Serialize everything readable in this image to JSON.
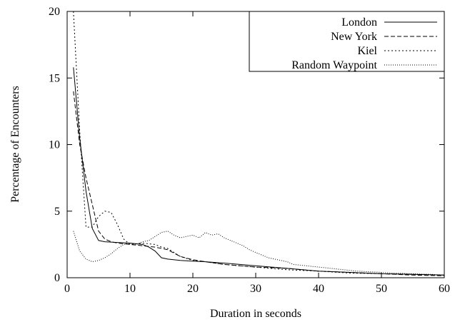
{
  "chart_data": {
    "type": "line",
    "title": "",
    "xlabel": "Duration in seconds",
    "ylabel": "Percentage of Encounters",
    "xlim": [
      0,
      60
    ],
    "ylim": [
      0,
      20
    ],
    "xticks": [
      0,
      10,
      20,
      30,
      40,
      50,
      60
    ],
    "yticks": [
      0,
      5,
      10,
      15,
      20
    ],
    "xtick_labels": [
      "0",
      "10",
      "20",
      "30",
      "40",
      "50",
      "60"
    ],
    "ytick_labels": [
      "0",
      "5",
      "10",
      "15",
      "20"
    ],
    "grid": false,
    "legend_position": "top-right",
    "series": [
      {
        "name": "London",
        "dash": "none",
        "points": [
          [
            1,
            15.8
          ],
          [
            2,
            10.5
          ],
          [
            3,
            6.5
          ],
          [
            4,
            3.7
          ],
          [
            5,
            2.8
          ],
          [
            6,
            2.7
          ],
          [
            8,
            2.65
          ],
          [
            10,
            2.6
          ],
          [
            12,
            2.5
          ],
          [
            13,
            2.3
          ],
          [
            14,
            2.0
          ],
          [
            15,
            1.5
          ],
          [
            16,
            1.4
          ],
          [
            18,
            1.3
          ],
          [
            20,
            1.25
          ],
          [
            22,
            1.2
          ],
          [
            25,
            1.1
          ],
          [
            30,
            0.9
          ],
          [
            35,
            0.7
          ],
          [
            40,
            0.5
          ],
          [
            45,
            0.4
          ],
          [
            50,
            0.3
          ],
          [
            55,
            0.25
          ],
          [
            60,
            0.2
          ]
        ]
      },
      {
        "name": "New York",
        "dash": "6,3",
        "points": [
          [
            1,
            14.0
          ],
          [
            2,
            10.0
          ],
          [
            3,
            7.5
          ],
          [
            4,
            5.5
          ],
          [
            5,
            3.5
          ],
          [
            6,
            2.9
          ],
          [
            7,
            2.7
          ],
          [
            8,
            2.6
          ],
          [
            10,
            2.5
          ],
          [
            12,
            2.4
          ],
          [
            14,
            2.3
          ],
          [
            16,
            2.1
          ],
          [
            18,
            1.6
          ],
          [
            20,
            1.35
          ],
          [
            22,
            1.2
          ],
          [
            25,
            1.0
          ],
          [
            30,
            0.8
          ],
          [
            35,
            0.7
          ],
          [
            40,
            0.5
          ],
          [
            45,
            0.4
          ],
          [
            50,
            0.3
          ],
          [
            55,
            0.2
          ],
          [
            60,
            0.15
          ]
        ]
      },
      {
        "name": "Kiel",
        "dash": "2,3",
        "points": [
          [
            1,
            20.0
          ],
          [
            2,
            11.0
          ],
          [
            3,
            3.8
          ],
          [
            4,
            3.8
          ],
          [
            5,
            4.6
          ],
          [
            6,
            5.0
          ],
          [
            7,
            4.9
          ],
          [
            8,
            4.0
          ],
          [
            9,
            2.9
          ],
          [
            10,
            2.5
          ],
          [
            12,
            2.6
          ],
          [
            14,
            2.5
          ],
          [
            15,
            2.3
          ],
          [
            16,
            2.2
          ],
          [
            18,
            1.6
          ],
          [
            20,
            1.3
          ],
          [
            22,
            1.2
          ],
          [
            25,
            1.0
          ],
          [
            30,
            0.8
          ],
          [
            35,
            0.6
          ],
          [
            40,
            0.5
          ],
          [
            45,
            0.35
          ],
          [
            50,
            0.3
          ],
          [
            55,
            0.25
          ],
          [
            60,
            0.2
          ]
        ]
      },
      {
        "name": "Random Waypoint",
        "dash": "1,2",
        "points": [
          [
            1,
            3.5
          ],
          [
            2,
            2.0
          ],
          [
            3,
            1.4
          ],
          [
            4,
            1.2
          ],
          [
            5,
            1.3
          ],
          [
            6,
            1.5
          ],
          [
            7,
            1.8
          ],
          [
            8,
            2.2
          ],
          [
            9,
            2.5
          ],
          [
            10,
            2.6
          ],
          [
            11,
            2.5
          ],
          [
            12,
            2.7
          ],
          [
            13,
            2.8
          ],
          [
            14,
            3.1
          ],
          [
            15,
            3.4
          ],
          [
            16,
            3.5
          ],
          [
            17,
            3.2
          ],
          [
            18,
            3.0
          ],
          [
            19,
            3.1
          ],
          [
            20,
            3.2
          ],
          [
            21,
            3.0
          ],
          [
            22,
            3.4
          ],
          [
            23,
            3.2
          ],
          [
            24,
            3.3
          ],
          [
            25,
            3.0
          ],
          [
            26,
            2.8
          ],
          [
            27,
            2.6
          ],
          [
            28,
            2.4
          ],
          [
            29,
            2.1
          ],
          [
            30,
            1.9
          ],
          [
            31,
            1.7
          ],
          [
            32,
            1.5
          ],
          [
            33,
            1.4
          ],
          [
            34,
            1.3
          ],
          [
            35,
            1.2
          ],
          [
            36,
            1.0
          ],
          [
            38,
            0.9
          ],
          [
            40,
            0.8
          ],
          [
            42,
            0.7
          ],
          [
            44,
            0.6
          ],
          [
            46,
            0.5
          ],
          [
            48,
            0.45
          ],
          [
            50,
            0.4
          ],
          [
            52,
            0.35
          ],
          [
            55,
            0.3
          ],
          [
            58,
            0.25
          ],
          [
            60,
            0.2
          ]
        ]
      }
    ]
  }
}
